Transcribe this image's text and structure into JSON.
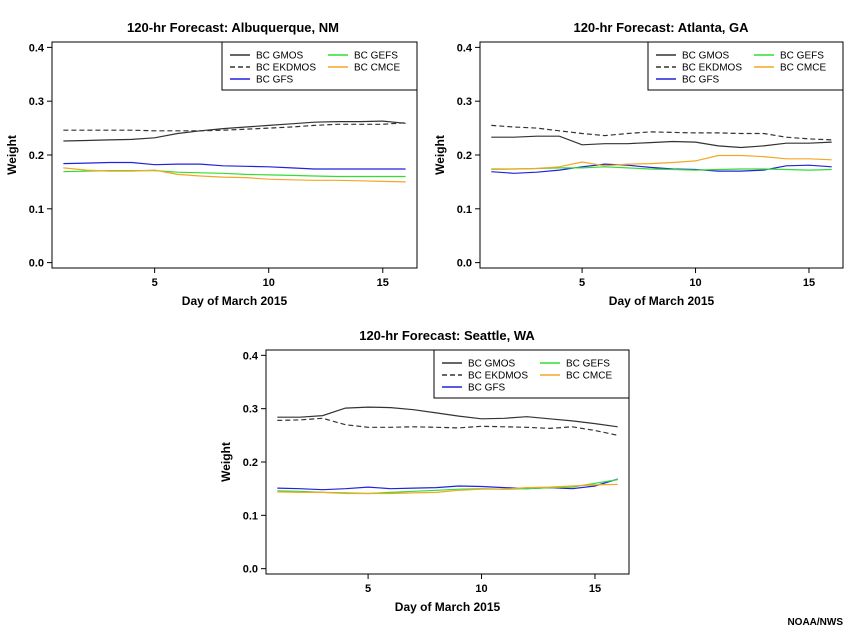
{
  "credit": "NOAA/NWS",
  "legend_labels": {
    "gmos": "BC GMOS",
    "ekdmos": "BC EKDMOS",
    "gfs": "BC GFS",
    "gefs": "BC GEFS",
    "cmce": "BC CMCE"
  },
  "colors": {
    "gmos": "#333333",
    "ekdmos": "#333333",
    "gfs": "#2222dd",
    "gefs": "#33dd33",
    "cmce": "#f5a623"
  },
  "chart_data": [
    {
      "type": "line",
      "title": "120-hr Forecast: Albuquerque, NM",
      "xlabel": "Day of March 2015",
      "ylabel": "Weight",
      "xlim": [
        0.5,
        16.5
      ],
      "ylim": [
        -0.01,
        0.41
      ],
      "xticks": [
        5,
        10,
        15
      ],
      "yticks": [
        0.0,
        0.1,
        0.2,
        0.3,
        0.4
      ],
      "ytick_labels": [
        "0.0",
        "0.1",
        "0.2",
        "0.3",
        "0.4"
      ],
      "x": [
        1,
        2,
        3,
        4,
        5,
        6,
        7,
        8,
        9,
        10,
        11,
        12,
        13,
        14,
        15,
        16
      ],
      "series": [
        {
          "key": "gmos",
          "name": "BC GMOS",
          "dash": false,
          "values": [
            0.226,
            0.227,
            0.228,
            0.229,
            0.232,
            0.24,
            0.245,
            0.249,
            0.252,
            0.255,
            0.258,
            0.261,
            0.262,
            0.262,
            0.263,
            0.259
          ]
        },
        {
          "key": "ekdmos",
          "name": "BC EKDMOS",
          "dash": true,
          "values": [
            0.246,
            0.246,
            0.246,
            0.246,
            0.245,
            0.245,
            0.245,
            0.246,
            0.248,
            0.25,
            0.252,
            0.255,
            0.257,
            0.257,
            0.257,
            0.26
          ]
        },
        {
          "key": "gfs",
          "name": "BC GFS",
          "dash": false,
          "values": [
            0.184,
            0.185,
            0.186,
            0.186,
            0.182,
            0.183,
            0.183,
            0.18,
            0.179,
            0.178,
            0.176,
            0.174,
            0.174,
            0.174,
            0.174,
            0.174
          ]
        },
        {
          "key": "gefs",
          "name": "BC GEFS",
          "dash": false,
          "values": [
            0.169,
            0.17,
            0.171,
            0.171,
            0.171,
            0.168,
            0.167,
            0.166,
            0.164,
            0.163,
            0.162,
            0.161,
            0.16,
            0.16,
            0.16,
            0.16
          ]
        },
        {
          "key": "cmce",
          "name": "BC CMCE",
          "dash": false,
          "values": [
            0.176,
            0.172,
            0.17,
            0.17,
            0.172,
            0.164,
            0.161,
            0.159,
            0.158,
            0.155,
            0.154,
            0.153,
            0.153,
            0.152,
            0.151,
            0.15
          ]
        }
      ],
      "legend": "top-right"
    },
    {
      "type": "line",
      "title": "120-hr Forecast: Atlanta, GA",
      "xlabel": "Day of March 2015",
      "ylabel": "Weight",
      "xlim": [
        0.5,
        16.5
      ],
      "ylim": [
        -0.01,
        0.41
      ],
      "xticks": [
        5,
        10,
        15
      ],
      "yticks": [
        0.0,
        0.1,
        0.2,
        0.3,
        0.4
      ],
      "ytick_labels": [
        "0.0",
        "0.1",
        "0.2",
        "0.3",
        "0.4"
      ],
      "x": [
        1,
        2,
        3,
        4,
        5,
        6,
        7,
        8,
        9,
        10,
        11,
        12,
        13,
        14,
        15,
        16
      ],
      "series": [
        {
          "key": "gmos",
          "name": "BC GMOS",
          "dash": false,
          "values": [
            0.233,
            0.233,
            0.235,
            0.235,
            0.219,
            0.221,
            0.221,
            0.223,
            0.225,
            0.224,
            0.217,
            0.214,
            0.217,
            0.222,
            0.222,
            0.224
          ]
        },
        {
          "key": "ekdmos",
          "name": "BC EKDMOS",
          "dash": true,
          "values": [
            0.255,
            0.252,
            0.25,
            0.245,
            0.24,
            0.236,
            0.24,
            0.243,
            0.242,
            0.241,
            0.241,
            0.24,
            0.24,
            0.233,
            0.23,
            0.228
          ]
        },
        {
          "key": "gfs",
          "name": "BC GFS",
          "dash": false,
          "values": [
            0.169,
            0.166,
            0.168,
            0.172,
            0.178,
            0.183,
            0.181,
            0.177,
            0.174,
            0.173,
            0.17,
            0.17,
            0.172,
            0.18,
            0.181,
            0.178
          ]
        },
        {
          "key": "gefs",
          "name": "BC GEFS",
          "dash": false,
          "values": [
            0.174,
            0.174,
            0.175,
            0.176,
            0.176,
            0.178,
            0.176,
            0.174,
            0.173,
            0.172,
            0.173,
            0.174,
            0.174,
            0.173,
            0.172,
            0.173
          ]
        },
        {
          "key": "cmce",
          "name": "BC CMCE",
          "dash": false,
          "values": [
            0.173,
            0.174,
            0.175,
            0.178,
            0.187,
            0.18,
            0.183,
            0.184,
            0.186,
            0.189,
            0.199,
            0.199,
            0.197,
            0.193,
            0.193,
            0.191
          ]
        }
      ],
      "legend": "top-right"
    },
    {
      "type": "line",
      "title": "120-hr Forecast: Seattle, WA",
      "xlabel": "Day of March 2015",
      "ylabel": "Weight",
      "xlim": [
        0.5,
        16.5
      ],
      "ylim": [
        -0.01,
        0.41
      ],
      "xticks": [
        5,
        10,
        15
      ],
      "yticks": [
        0.0,
        0.1,
        0.2,
        0.3,
        0.4
      ],
      "ytick_labels": [
        "0.0",
        "0.1",
        "0.2",
        "0.3",
        "0.4"
      ],
      "x": [
        1,
        2,
        3,
        4,
        5,
        6,
        7,
        8,
        9,
        10,
        11,
        12,
        13,
        14,
        15,
        16
      ],
      "series": [
        {
          "key": "gmos",
          "name": "BC GMOS",
          "dash": false,
          "values": [
            0.284,
            0.284,
            0.287,
            0.301,
            0.303,
            0.302,
            0.298,
            0.292,
            0.286,
            0.281,
            0.282,
            0.285,
            0.281,
            0.277,
            0.272,
            0.266
          ]
        },
        {
          "key": "ekdmos",
          "name": "BC EKDMOS",
          "dash": true,
          "values": [
            0.278,
            0.279,
            0.282,
            0.27,
            0.265,
            0.265,
            0.266,
            0.265,
            0.264,
            0.267,
            0.266,
            0.265,
            0.263,
            0.266,
            0.259,
            0.25
          ]
        },
        {
          "key": "gfs",
          "name": "BC GFS",
          "dash": false,
          "values": [
            0.151,
            0.15,
            0.148,
            0.15,
            0.153,
            0.15,
            0.151,
            0.152,
            0.155,
            0.154,
            0.152,
            0.15,
            0.152,
            0.15,
            0.155,
            0.168
          ]
        },
        {
          "key": "gefs",
          "name": "BC GEFS",
          "dash": false,
          "values": [
            0.146,
            0.145,
            0.143,
            0.142,
            0.141,
            0.143,
            0.145,
            0.147,
            0.149,
            0.15,
            0.149,
            0.15,
            0.152,
            0.153,
            0.16,
            0.167
          ]
        },
        {
          "key": "cmce",
          "name": "BC CMCE",
          "dash": false,
          "values": [
            0.144,
            0.143,
            0.143,
            0.141,
            0.141,
            0.141,
            0.142,
            0.143,
            0.147,
            0.149,
            0.149,
            0.152,
            0.153,
            0.155,
            0.157,
            0.158
          ]
        }
      ],
      "legend": "top-right"
    }
  ]
}
